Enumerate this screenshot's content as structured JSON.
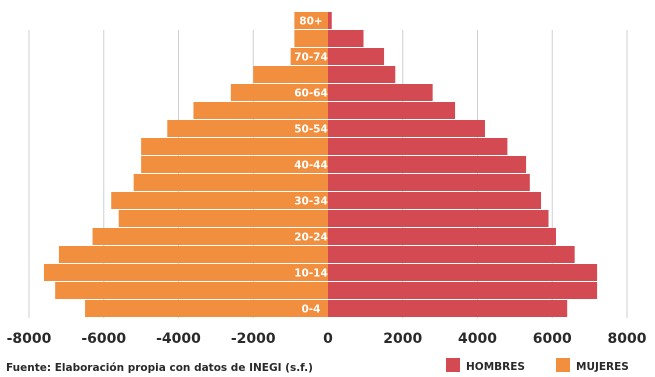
{
  "chart_data": {
    "type": "bar",
    "orientation": "horizontal",
    "subtype": "population-pyramid",
    "categories": [
      "0-4",
      "5-9",
      "10-14",
      "15-19",
      "20-24",
      "25-29",
      "30-34",
      "35-39",
      "40-44",
      "45-49",
      "50-54",
      "55-59",
      "60-64",
      "65-69",
      "70-74",
      "75-79",
      "80+"
    ],
    "labeled_categories": [
      "0-4",
      "10-14",
      "20-24",
      "30-34",
      "40-44",
      "50-54",
      "60-64",
      "70-74",
      "80+"
    ],
    "series": [
      {
        "name": "HOMBRES",
        "color": "#d44a52",
        "values": [
          6400,
          7200,
          7200,
          6600,
          6100,
          5900,
          5700,
          5400,
          5300,
          4800,
          4200,
          3400,
          2800,
          1800,
          1500,
          950,
          100
        ]
      },
      {
        "name": "MUJERES",
        "color": "#f28f3f",
        "values": [
          6500,
          7300,
          7600,
          7200,
          6300,
          5600,
          5800,
          5200,
          5000,
          5000,
          4300,
          3600,
          2600,
          2000,
          1000,
          900,
          900
        ]
      }
    ],
    "xlim": [
      -8000,
      8000
    ],
    "xticks": [
      "-8000",
      "-6000",
      "-4000",
      "-2000",
      "0",
      "2000",
      "4000",
      "6000",
      "8000"
    ],
    "grid": "vertical",
    "legend": {
      "position": "bottom-right"
    },
    "note": "Fuente: Elaboración propia con datos de INEGI (s.f.)"
  }
}
